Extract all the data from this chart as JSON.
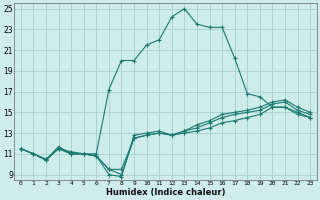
{
  "xlabel": "Humidex (Indice chaleur)",
  "background_color": "#ceecea",
  "grid_color": "#aad4d0",
  "line_color": "#1a7a6e",
  "xlim": [
    -0.5,
    23.5
  ],
  "ylim": [
    8.5,
    25.5
  ],
  "xticks": [
    0,
    1,
    2,
    3,
    4,
    5,
    6,
    7,
    8,
    9,
    10,
    11,
    12,
    13,
    14,
    15,
    16,
    17,
    18,
    19,
    20,
    21,
    22,
    23
  ],
  "yticks": [
    9,
    11,
    13,
    15,
    17,
    19,
    21,
    23,
    25
  ],
  "spike_x": [
    0,
    1,
    2,
    3,
    4,
    5,
    6,
    7,
    8,
    9,
    10,
    11,
    12,
    13,
    14,
    15,
    16,
    17,
    18,
    19,
    20,
    21,
    22,
    23
  ],
  "spike_y": [
    11.5,
    11.0,
    10.5,
    11.5,
    11.2,
    11.0,
    11.0,
    17.2,
    20.0,
    20.0,
    21.5,
    22.0,
    24.2,
    25.0,
    23.5,
    23.2,
    23.2,
    20.2,
    16.8,
    16.5,
    15.5,
    15.5,
    15.0,
    14.5
  ],
  "line1_x": [
    0,
    1,
    2,
    3,
    4,
    5,
    6,
    7,
    8,
    9,
    10,
    11,
    12,
    13,
    14,
    15,
    16,
    17,
    18,
    19,
    20,
    21,
    22,
    23
  ],
  "line1_y": [
    11.5,
    11.0,
    10.4,
    11.7,
    11.0,
    11.0,
    10.8,
    9.0,
    8.8,
    12.8,
    13.0,
    13.2,
    12.8,
    13.0,
    13.2,
    13.5,
    14.0,
    14.2,
    14.5,
    14.8,
    15.5,
    15.5,
    14.8,
    14.5
  ],
  "line2_x": [
    0,
    1,
    2,
    3,
    4,
    5,
    6,
    7,
    8,
    9,
    10,
    11,
    12,
    13,
    14,
    15,
    16,
    17,
    18,
    19,
    20,
    21,
    22,
    23
  ],
  "line2_y": [
    11.5,
    11.0,
    10.4,
    11.5,
    11.0,
    11.0,
    10.8,
    9.5,
    9.0,
    12.5,
    12.8,
    13.0,
    12.8,
    13.2,
    13.5,
    14.0,
    14.5,
    14.8,
    15.0,
    15.2,
    15.8,
    16.0,
    15.2,
    14.8
  ],
  "line3_x": [
    0,
    1,
    2,
    3,
    4,
    5,
    6,
    7,
    8,
    9,
    10,
    11,
    12,
    13,
    14,
    15,
    16,
    17,
    18,
    19,
    20,
    21,
    22,
    23
  ],
  "line3_y": [
    11.5,
    11.0,
    10.4,
    11.5,
    11.0,
    11.0,
    10.8,
    9.5,
    9.5,
    12.5,
    12.8,
    13.0,
    12.8,
    13.2,
    13.8,
    14.2,
    14.8,
    15.0,
    15.2,
    15.5,
    16.0,
    16.2,
    15.5,
    15.0
  ]
}
